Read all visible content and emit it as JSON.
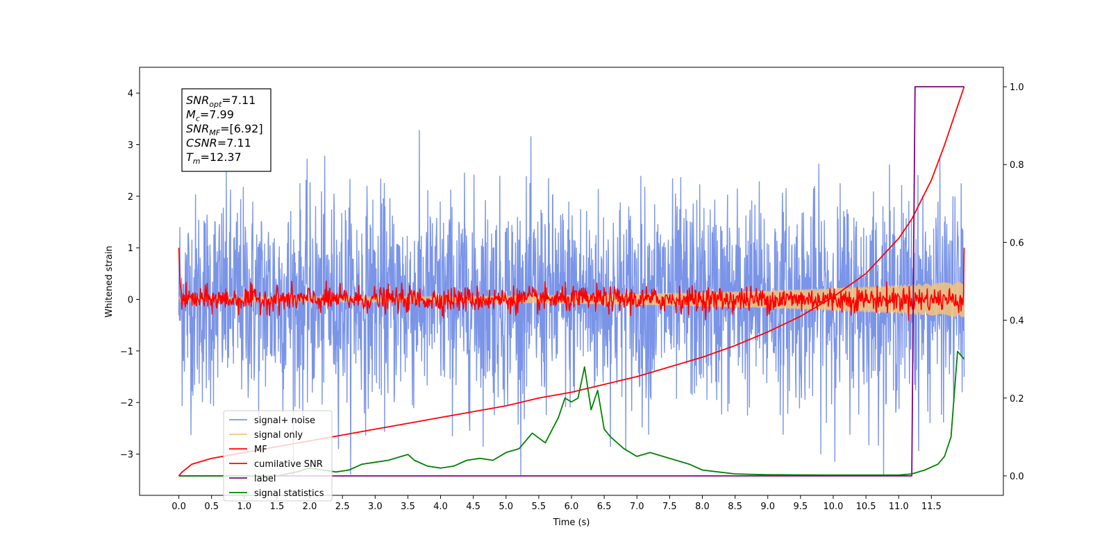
{
  "chart_data": {
    "type": "line",
    "title": "",
    "xlabel": "Time (s)",
    "ylabel": "Whitened strain",
    "y2label": "",
    "xlim": [
      -0.6,
      12.6
    ],
    "ylim": [
      -3.8,
      4.5
    ],
    "y2lim": [
      -0.05,
      1.05
    ],
    "xticks": [
      0.0,
      0.5,
      1.0,
      1.5,
      2.0,
      2.5,
      3.0,
      3.5,
      4.0,
      4.5,
      5.0,
      5.5,
      6.0,
      6.5,
      7.0,
      7.5,
      8.0,
      8.5,
      9.0,
      9.5,
      10.0,
      10.5,
      11.0,
      11.5
    ],
    "xtick_labels": [
      "0.0",
      "0.5",
      "1.0",
      "1.5",
      "2.0",
      "2.5",
      "3.0",
      "3.5",
      "4.0",
      "4.5",
      "5.0",
      "5.5",
      "6.0",
      "6.5",
      "7.0",
      "7.5",
      "8.0",
      "8.5",
      "9.0",
      "9.5",
      "10.0",
      "10.5",
      "11.0",
      "11.5"
    ],
    "yticks": [
      -3,
      -2,
      -1,
      0,
      1,
      2,
      3,
      4
    ],
    "ytick_labels": [
      "−3",
      "−2",
      "−1",
      "0",
      "1",
      "2",
      "3",
      "4"
    ],
    "y2ticks": [
      0.0,
      0.2,
      0.4,
      0.6,
      0.8,
      1.0
    ],
    "y2tick_labels": [
      "0.0",
      "0.2",
      "0.4",
      "0.6",
      "0.8",
      "1.0"
    ],
    "grid": false,
    "legend_position": "lower-left",
    "annotation": {
      "lines": [
        {
          "base": "SNR",
          "sub": "opt",
          "value": "=7.11"
        },
        {
          "base": "M",
          "sub": "c",
          "value": "=7.99"
        },
        {
          "base": "SNR",
          "sub": "MF",
          "value": "=[6.92]"
        },
        {
          "base": "CSNR",
          "sub": "",
          "value": "=7.11"
        },
        {
          "base": "T",
          "sub": "m",
          "value": "=12.37"
        }
      ]
    },
    "series": [
      {
        "name": "signal+ noise",
        "color": "#7a94e8",
        "axis": "left",
        "kind": "noise",
        "t_start": 0.0,
        "t_end": 12.0,
        "amplitude_std": 1.0,
        "description_range": [
          -3.4,
          4.2
        ]
      },
      {
        "name": "signal only",
        "color": "#f5c27a",
        "axis": "left",
        "kind": "chirp",
        "t_start": 0.0,
        "t_end": 12.0,
        "amp_start": 0.05,
        "amp_end": 0.35
      },
      {
        "name": "MF",
        "color": "#ff0000",
        "axis": "left",
        "kind": "mf",
        "t_start": 0.0,
        "t_end": 12.0,
        "start_value": 1.0,
        "end_value": 1.0,
        "amplitude_std": 0.12
      },
      {
        "name": "cumilative SNR",
        "color": "#ff0000",
        "axis": "right",
        "x": [
          0.0,
          0.05,
          0.2,
          0.5,
          1.0,
          1.5,
          2.0,
          2.5,
          3.0,
          3.5,
          4.0,
          4.5,
          5.0,
          5.5,
          6.0,
          6.5,
          7.0,
          7.5,
          8.0,
          8.5,
          9.0,
          9.5,
          10.0,
          10.5,
          11.0,
          11.2,
          11.5,
          11.7,
          12.0
        ],
        "y": [
          0.0,
          0.01,
          0.03,
          0.045,
          0.06,
          0.075,
          0.09,
          0.105,
          0.12,
          0.135,
          0.15,
          0.165,
          0.18,
          0.2,
          0.215,
          0.235,
          0.255,
          0.28,
          0.305,
          0.335,
          0.37,
          0.41,
          0.46,
          0.52,
          0.61,
          0.66,
          0.76,
          0.85,
          1.0
        ]
      },
      {
        "name": "label",
        "color": "#800080",
        "axis": "right",
        "x": [
          0.0,
          11.2,
          11.25,
          12.0
        ],
        "y": [
          0.0,
          0.0,
          1.0,
          1.0
        ]
      },
      {
        "name": "signal statistics",
        "color": "#008000",
        "axis": "right",
        "x": [
          0.0,
          0.5,
          1.0,
          1.5,
          1.8,
          2.0,
          2.2,
          2.4,
          2.6,
          2.8,
          3.0,
          3.2,
          3.4,
          3.5,
          3.6,
          3.8,
          4.0,
          4.2,
          4.4,
          4.6,
          4.8,
          5.0,
          5.2,
          5.4,
          5.6,
          5.8,
          5.9,
          6.0,
          6.1,
          6.2,
          6.3,
          6.4,
          6.5,
          6.6,
          6.8,
          7.0,
          7.2,
          7.4,
          7.6,
          7.8,
          8.0,
          8.5,
          9.0,
          10.0,
          11.0,
          11.2,
          11.4,
          11.6,
          11.7,
          11.8,
          11.9,
          12.0
        ],
        "y": [
          0.0,
          0.0,
          0.0,
          0.0,
          0.01,
          0.02,
          0.015,
          0.01,
          0.015,
          0.03,
          0.035,
          0.04,
          0.05,
          0.055,
          0.04,
          0.025,
          0.02,
          0.025,
          0.04,
          0.045,
          0.04,
          0.06,
          0.07,
          0.11,
          0.085,
          0.15,
          0.2,
          0.19,
          0.2,
          0.28,
          0.17,
          0.22,
          0.12,
          0.1,
          0.07,
          0.05,
          0.06,
          0.05,
          0.04,
          0.03,
          0.015,
          0.005,
          0.003,
          0.002,
          0.002,
          0.005,
          0.015,
          0.03,
          0.05,
          0.1,
          0.32,
          0.3
        ]
      }
    ]
  }
}
